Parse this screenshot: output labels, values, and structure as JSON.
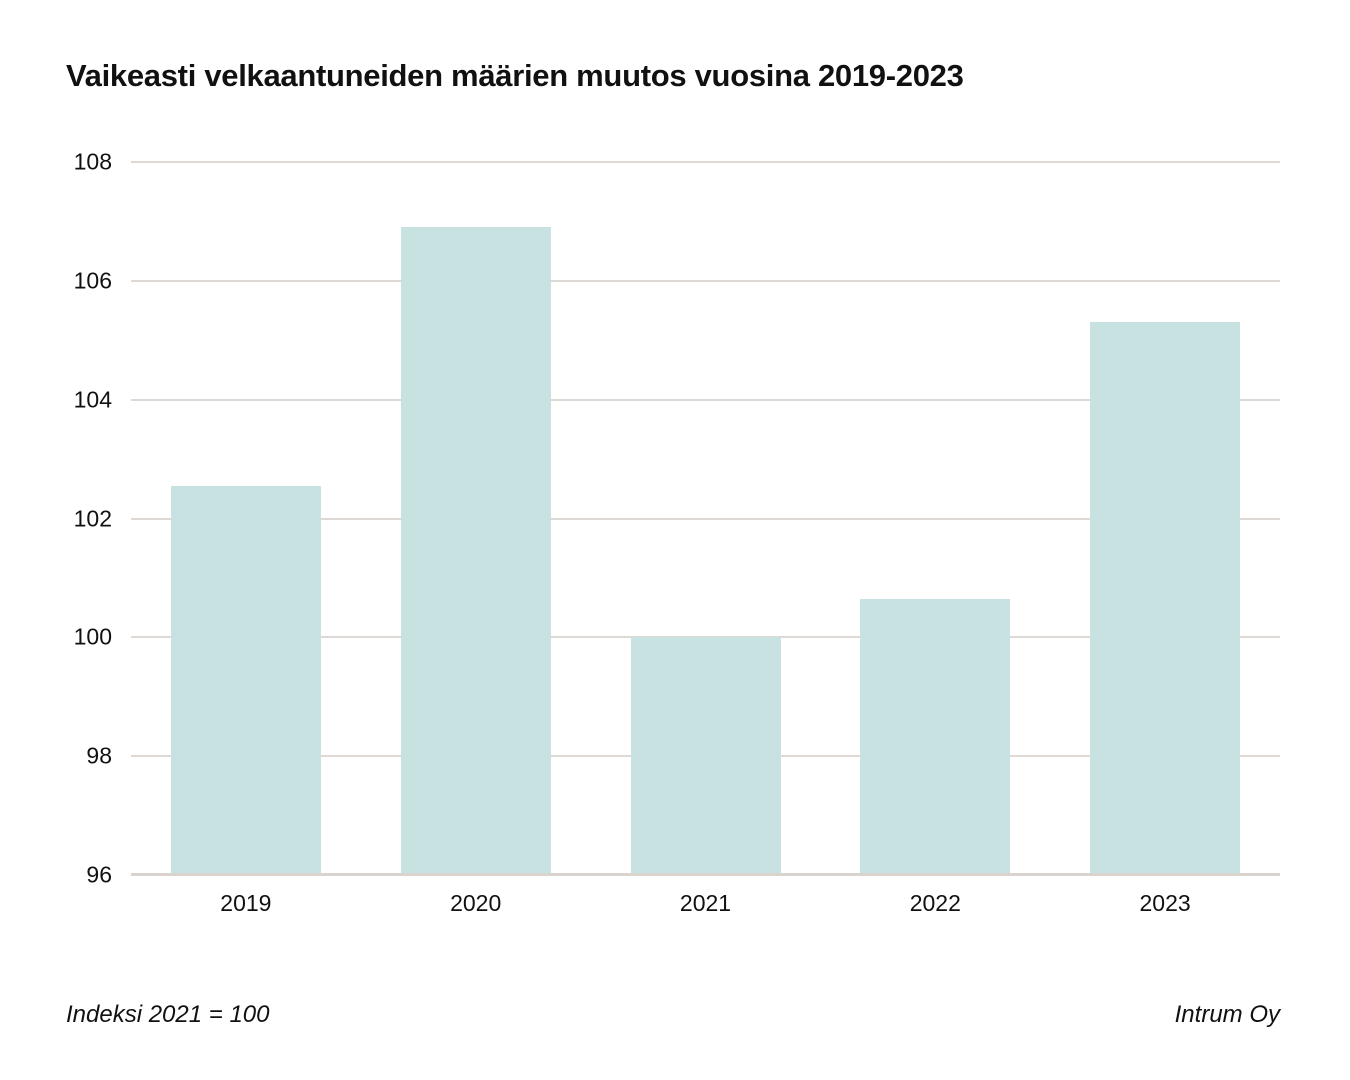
{
  "chart_data": {
    "type": "bar",
    "title": "Vaikeasti velkaantuneiden määrien muutos vuosina 2019-2023",
    "categories": [
      "2019",
      "2020",
      "2021",
      "2022",
      "2023"
    ],
    "values": [
      102.55,
      106.9,
      100,
      100.65,
      105.3
    ],
    "xlabel": "",
    "ylabel": "",
    "ylim": [
      96,
      108
    ],
    "yticks": [
      108,
      106,
      104,
      102,
      100,
      98,
      96
    ],
    "grid": true,
    "legend": "none"
  },
  "footer": {
    "note": "Indeksi 2021 = 100",
    "source": "Intrum Oy"
  },
  "colors": {
    "background": "#ffffff",
    "bar": "#c8e2e2",
    "gridline": "#ded9d4",
    "axis_line": "#d9d4ce",
    "text": "#111111"
  }
}
